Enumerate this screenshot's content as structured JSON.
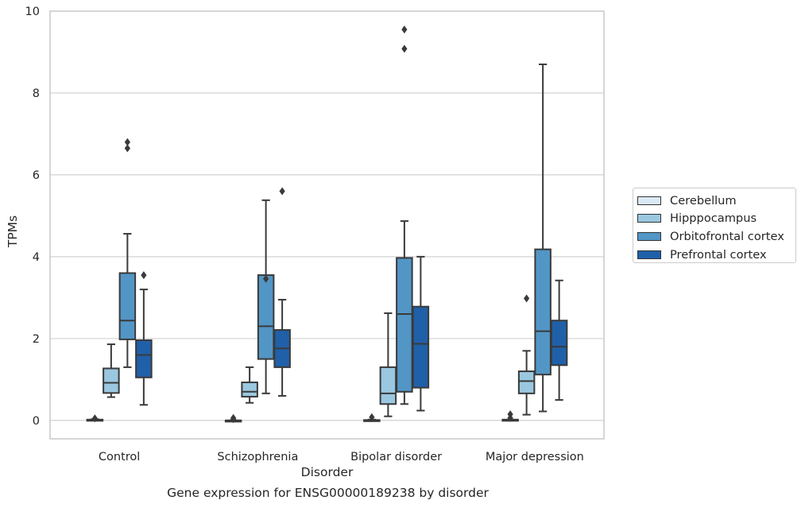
{
  "caption": "Gene expression for ENSG00000189238 by disorder",
  "chart_data": {
    "type": "boxplot",
    "xlabel": "Disorder",
    "ylabel": "TPMs",
    "categories": [
      "Control",
      "Schizophrenia",
      "Bipolar disorder",
      "Major depression"
    ],
    "ylim": [
      -0.45,
      10
    ],
    "yticks": [
      0,
      2,
      4,
      6,
      8,
      10
    ],
    "grid": "horizontal",
    "legend_position": "right",
    "series": [
      {
        "name": "Cerebellum",
        "color": "#dbe9f6",
        "boxes": [
          {
            "whislo": 0.0,
            "q1": 0.0,
            "med": 0.01,
            "q3": 0.02,
            "whishi": 0.03,
            "fliers": [
              0.05
            ]
          },
          {
            "whislo": 0.0,
            "q1": 0.0,
            "med": 0.0,
            "q3": 0.0,
            "whishi": 0.0,
            "fliers": [
              0.03,
              0.06
            ]
          },
          {
            "whislo": 0.0,
            "q1": 0.0,
            "med": 0.0,
            "q3": 0.01,
            "whishi": 0.02,
            "fliers": [
              0.08
            ]
          },
          {
            "whislo": 0.0,
            "q1": 0.0,
            "med": 0.01,
            "q3": 0.02,
            "whishi": 0.02,
            "fliers": [
              0.06,
              0.15
            ]
          }
        ]
      },
      {
        "name": "Hipppocampus",
        "color": "#9ac8e0",
        "boxes": [
          {
            "whislo": 0.57,
            "q1": 0.67,
            "med": 0.92,
            "q3": 1.27,
            "whishi": 1.86,
            "fliers": []
          },
          {
            "whislo": 0.43,
            "q1": 0.58,
            "med": 0.7,
            "q3": 0.93,
            "whishi": 1.3,
            "fliers": []
          },
          {
            "whislo": 0.1,
            "q1": 0.4,
            "med": 0.66,
            "q3": 1.3,
            "whishi": 2.62,
            "fliers": []
          },
          {
            "whislo": 0.14,
            "q1": 0.66,
            "med": 0.96,
            "q3": 1.2,
            "whishi": 1.7,
            "fliers": [
              2.98
            ]
          }
        ]
      },
      {
        "name": "Orbitofrontal cortex",
        "color": "#5296c6",
        "boxes": [
          {
            "whislo": 1.3,
            "q1": 1.98,
            "med": 2.44,
            "q3": 3.6,
            "whishi": 4.56,
            "fliers": [
              6.65,
              6.8
            ]
          },
          {
            "whislo": 0.66,
            "q1": 1.5,
            "med": 2.3,
            "q3": 3.55,
            "whishi": 5.38,
            "fliers": [
              3.46
            ]
          },
          {
            "whislo": 0.4,
            "q1": 0.7,
            "med": 2.6,
            "q3": 3.97,
            "whishi": 4.87,
            "fliers": [
              9.08,
              9.55
            ]
          },
          {
            "whislo": 0.22,
            "q1": 1.12,
            "med": 2.18,
            "q3": 4.18,
            "whishi": 8.7,
            "fliers": []
          }
        ]
      },
      {
        "name": "Prefrontal cortex",
        "color": "#2060a8",
        "boxes": [
          {
            "whislo": 0.38,
            "q1": 1.05,
            "med": 1.6,
            "q3": 1.96,
            "whishi": 3.2,
            "fliers": [
              3.55
            ]
          },
          {
            "whislo": 0.6,
            "q1": 1.3,
            "med": 1.76,
            "q3": 2.21,
            "whishi": 2.95,
            "fliers": [
              5.6
            ]
          },
          {
            "whislo": 0.24,
            "q1": 0.8,
            "med": 1.87,
            "q3": 2.78,
            "whishi": 4.0,
            "fliers": []
          },
          {
            "whislo": 0.5,
            "q1": 1.35,
            "med": 1.8,
            "q3": 2.44,
            "whishi": 3.42,
            "fliers": []
          }
        ]
      }
    ]
  }
}
